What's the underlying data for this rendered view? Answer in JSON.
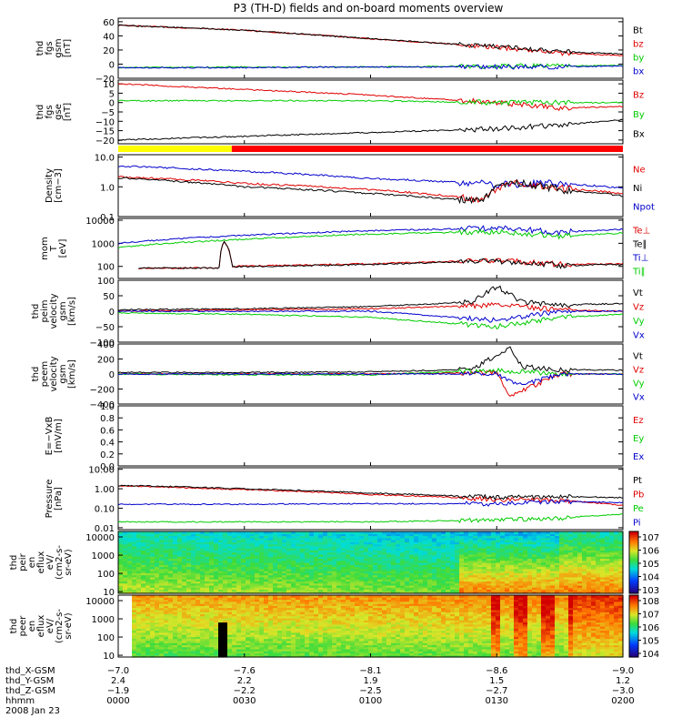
{
  "title": "P3 (TH-D) fields and on-board moments overview",
  "colors": {
    "black": "#000000",
    "red": "#e00000",
    "green": "#00cc00",
    "blue": "#0000cc",
    "yellow": "#ffff00",
    "bar_red": "#ff0000"
  },
  "chart_data": {
    "type": "line",
    "panels": [
      {
        "id": "fgs_gsm",
        "ylabel": [
          "thd",
          "fgs",
          "gsm",
          "[nT]"
        ],
        "ticks": [
          -20,
          0,
          20,
          40,
          60
        ],
        "tick_labels": [
          "−20",
          "0",
          "20",
          "40",
          "60"
        ],
        "ylim": [
          -20,
          65
        ],
        "scale": "linear",
        "legend": [
          {
            "name": "Bt",
            "color": "black"
          },
          {
            "name": "bz",
            "color": "red"
          },
          {
            "name": "by",
            "color": "green"
          },
          {
            "name": "bx",
            "color": "blue"
          }
        ],
        "series": [
          {
            "color": "red",
            "x": [
              0,
              0.5,
              0.75,
              1.0,
              1.25,
              1.5,
              1.75,
              2.0
            ],
            "y": [
              55,
              48,
              42,
              36,
              30,
              24,
              16,
              12
            ]
          },
          {
            "color": "black",
            "x": [
              0,
              0.5,
              0.75,
              1.0,
              1.25,
              1.5,
              1.75,
              2.0
            ],
            "y": [
              55,
              48,
              42,
              36,
              30,
              25,
              18,
              14
            ]
          },
          {
            "color": "green",
            "x": [
              0,
              0.5,
              1.0,
              1.5,
              2.0
            ],
            "y": [
              -5,
              -4,
              -4,
              -3,
              -2
            ]
          },
          {
            "color": "blue",
            "x": [
              0,
              0.5,
              1.0,
              1.5,
              2.0
            ],
            "y": [
              -5,
              -5,
              -4,
              -4,
              -3
            ]
          }
        ]
      },
      {
        "id": "fgs_gse",
        "ylabel": [
          "thd",
          "fgs",
          "gse",
          "[nT]"
        ],
        "ticks": [
          -20,
          -15,
          -10,
          -5,
          0,
          5,
          10
        ],
        "tick_labels": [
          "−20",
          "−15",
          "−10",
          "−5",
          "0",
          "5",
          "10"
        ],
        "ylim": [
          -22,
          12
        ],
        "scale": "linear",
        "legend": [
          {
            "name": "Bz",
            "color": "red"
          },
          {
            "name": "By",
            "color": "green"
          },
          {
            "name": "Bx",
            "color": "black"
          }
        ],
        "series": [
          {
            "color": "red",
            "x": [
              0,
              0.5,
              1.0,
              1.5,
              1.75,
              2.0
            ],
            "y": [
              10,
              7,
              4,
              0,
              -3,
              -2
            ]
          },
          {
            "color": "green",
            "x": [
              0,
              0.5,
              1.0,
              1.5,
              2.0
            ],
            "y": [
              1,
              1,
              1,
              0,
              0
            ]
          },
          {
            "color": "black",
            "x": [
              0,
              0.5,
              1.0,
              1.5,
              1.75,
              2.0
            ],
            "y": [
              -20,
              -18,
              -16,
              -14,
              -12,
              -9
            ]
          }
        ]
      },
      {
        "id": "density",
        "ylabel": [
          "Density",
          "[cm−3]"
        ],
        "ticks": [
          0.1,
          1.0,
          10.0
        ],
        "tick_labels": [
          "0.1",
          "1.0",
          "10.0"
        ],
        "ylim": [
          0.1,
          12
        ],
        "scale": "log",
        "legend": [
          {
            "name": "Ne",
            "color": "red"
          },
          {
            "name": "Ni",
            "color": "black"
          },
          {
            "name": "Npot",
            "color": "blue"
          }
        ],
        "series": [
          {
            "color": "blue",
            "x": [
              0,
              0.5,
              1.0,
              1.5,
              1.75,
              2.0
            ],
            "y": [
              5,
              3.3,
              1.9,
              1.2,
              1.3,
              0.9
            ]
          },
          {
            "color": "red",
            "x": [
              0,
              0.5,
              1.0,
              1.3,
              1.45,
              1.55,
              1.75,
              2.0
            ],
            "y": [
              2.2,
              1.3,
              0.8,
              0.5,
              0.35,
              1.4,
              0.9,
              0.6
            ]
          },
          {
            "color": "black",
            "x": [
              0,
              0.5,
              1.0,
              1.3,
              1.45,
              1.55,
              1.75,
              2.0
            ],
            "y": [
              2.0,
              1.0,
              0.6,
              0.4,
              0.35,
              1.5,
              0.8,
              0.5
            ]
          }
        ]
      },
      {
        "id": "temperature",
        "ylabel": [
          "mom",
          "T",
          "[eV]"
        ],
        "ticks": [
          100,
          1000,
          10000
        ],
        "tick_labels": [
          "100",
          "1000",
          "10000"
        ],
        "ylim": [
          30,
          12000
        ],
        "scale": "log",
        "legend": [
          {
            "name": "Te⊥",
            "color": "red"
          },
          {
            "name": "Te∥",
            "color": "black"
          },
          {
            "name": "Ti⊥",
            "color": "blue"
          },
          {
            "name": "Ti∥",
            "color": "green"
          }
        ],
        "series": [
          {
            "color": "blue",
            "x": [
              0,
              0.5,
              1.0,
              1.5,
              1.75,
              2.0
            ],
            "y": [
              1000,
              2200,
              3500,
              4500,
              3000,
              4000
            ]
          },
          {
            "color": "green",
            "x": [
              0,
              0.5,
              1.0,
              1.5,
              1.75,
              2.0
            ],
            "y": [
              650,
              1500,
              2500,
              3200,
              2000,
              2800
            ]
          },
          {
            "color": "red",
            "x": [
              0.08,
              0.4,
              0.42,
              0.45,
              1.0,
              1.5,
              1.75,
              2.0
            ],
            "y": [
              85,
              85,
              1200,
              100,
              130,
              180,
              120,
              130
            ]
          },
          {
            "color": "black",
            "x": [
              0.08,
              0.4,
              0.42,
              0.45,
              1.0,
              1.5,
              1.75,
              2.0
            ],
            "y": [
              85,
              85,
              1200,
              95,
              120,
              170,
              110,
              120
            ]
          }
        ]
      },
      {
        "id": "velocity_gsm",
        "ylabel": [
          "thd",
          "peim",
          "velocity",
          "gsm",
          "[km/s]"
        ],
        "ticks": [
          -100,
          -50,
          0,
          50,
          100
        ],
        "tick_labels": [
          "−100",
          "−50",
          "0",
          "50",
          "100"
        ],
        "ylim": [
          -100,
          100
        ],
        "scale": "linear",
        "legend": [
          {
            "name": "Vt",
            "color": "black"
          },
          {
            "name": "Vz",
            "color": "red"
          },
          {
            "name": "Vy",
            "color": "green"
          },
          {
            "name": "Vx",
            "color": "blue"
          }
        ],
        "series": [
          {
            "color": "black",
            "x": [
              0,
              0.5,
              1.0,
              1.4,
              1.5,
              1.6,
              1.75,
              2.0
            ],
            "y": [
              5,
              8,
              15,
              30,
              80,
              30,
              20,
              25
            ]
          },
          {
            "color": "red",
            "x": [
              0,
              0.5,
              1.0,
              1.5,
              1.75,
              2.0
            ],
            "y": [
              0,
              5,
              8,
              20,
              5,
              0
            ]
          },
          {
            "color": "green",
            "x": [
              0,
              0.5,
              1.0,
              1.5,
              1.75,
              2.0
            ],
            "y": [
              -5,
              -10,
              -20,
              -50,
              -20,
              -10
            ]
          },
          {
            "color": "blue",
            "x": [
              0,
              0.5,
              1.0,
              1.5,
              1.75,
              2.0
            ],
            "y": [
              0,
              0,
              0,
              -30,
              0,
              0
            ]
          }
        ]
      },
      {
        "id": "velocity_gsm_b",
        "ylabel": [
          "thd",
          "peem",
          "velocity",
          "gsm",
          "[km/s]"
        ],
        "ticks": [
          -400,
          -200,
          0,
          200,
          400
        ],
        "tick_labels": [
          "−400",
          "−200",
          "0",
          "200",
          "400"
        ],
        "ylim": [
          -400,
          400
        ],
        "scale": "linear",
        "legend": [
          {
            "name": "Vt",
            "color": "black"
          },
          {
            "name": "Vz",
            "color": "red"
          },
          {
            "name": "Vy",
            "color": "green"
          },
          {
            "name": "Vx",
            "color": "blue"
          }
        ],
        "series": [
          {
            "color": "black",
            "x": [
              0,
              0.5,
              1.0,
              1.4,
              1.55,
              1.6,
              1.75,
              2.0
            ],
            "y": [
              20,
              20,
              30,
              60,
              350,
              100,
              60,
              50
            ]
          },
          {
            "color": "red",
            "x": [
              0,
              0.5,
              1.0,
              1.5,
              1.55,
              1.75,
              2.0
            ],
            "y": [
              0,
              0,
              0,
              20,
              -300,
              0,
              0
            ]
          },
          {
            "color": "green",
            "x": [
              0,
              0.5,
              1.0,
              1.5,
              1.75,
              2.0
            ],
            "y": [
              0,
              -10,
              -10,
              50,
              0,
              0
            ]
          },
          {
            "color": "blue",
            "x": [
              0,
              0.5,
              1.0,
              1.5,
              1.6,
              1.75,
              2.0
            ],
            "y": [
              0,
              0,
              0,
              0,
              -150,
              0,
              0
            ]
          }
        ]
      },
      {
        "id": "efield",
        "ylabel": [
          "E=−VxB",
          "[mV/m]"
        ],
        "ticks": [
          0.0,
          0.2,
          0.4,
          0.6,
          0.8,
          1.0
        ],
        "tick_labels": [
          "0.0",
          "0.2",
          "0.4",
          "0.6",
          "0.8",
          "1.0"
        ],
        "ylim": [
          0,
          1
        ],
        "scale": "linear",
        "legend": [
          {
            "name": "Ez",
            "color": "red"
          },
          {
            "name": "Ey",
            "color": "green"
          },
          {
            "name": "Ex",
            "color": "blue"
          }
        ],
        "series": []
      },
      {
        "id": "pressure",
        "ylabel": [
          "Pressure",
          "[nPa]"
        ],
        "ticks": [
          0.01,
          0.1,
          1.0,
          10.0
        ],
        "tick_labels": [
          "0.01",
          "0.10",
          "1.00",
          "10.00"
        ],
        "ylim": [
          0.008,
          12
        ],
        "scale": "log",
        "legend": [
          {
            "name": "Pt",
            "color": "black"
          },
          {
            "name": "Pb",
            "color": "red"
          },
          {
            "name": "Pe",
            "color": "green"
          },
          {
            "name": "Pi",
            "color": "blue"
          }
        ],
        "series": [
          {
            "color": "red",
            "x": [
              0,
              0.5,
              1.0,
              1.5,
              1.75,
              2.0
            ],
            "y": [
              1.4,
              0.9,
              0.5,
              0.28,
              0.25,
              0.14
            ]
          },
          {
            "color": "black",
            "x": [
              0,
              0.5,
              1.0,
              1.5,
              1.75,
              2.0
            ],
            "y": [
              1.5,
              1.0,
              0.6,
              0.35,
              0.4,
              0.35
            ]
          },
          {
            "color": "blue",
            "x": [
              0,
              0.5,
              1.0,
              1.5,
              1.75,
              2.0
            ],
            "y": [
              0.16,
              0.16,
              0.17,
              0.17,
              0.22,
              0.2
            ]
          },
          {
            "color": "green",
            "x": [
              0,
              0.5,
              1.0,
              1.5,
              1.75,
              2.0
            ],
            "y": [
              0.02,
              0.02,
              0.02,
              0.025,
              0.03,
              0.05
            ]
          }
        ]
      }
    ],
    "spectrograms": [
      {
        "id": "ion_eflux",
        "ylabel": [
          "thd",
          "peir",
          "en",
          "eflux",
          "eV/",
          "(cm2-s-",
          "sr-eV)"
        ],
        "ticks": [
          10,
          100,
          1000,
          10000
        ],
        "tick_labels": [
          "10",
          "100",
          "1000",
          "10000"
        ],
        "colorbar_ticks": [
          "103",
          "104",
          "105",
          "106",
          "107"
        ]
      },
      {
        "id": "electron_eflux",
        "ylabel": [
          "thd",
          "peer",
          "en",
          "eflux",
          "eV/",
          "(cm2-s-",
          "sr-eV)"
        ],
        "ticks": [
          10,
          100,
          1000,
          10000
        ],
        "tick_labels": [
          "10",
          "100",
          "1000",
          "10000"
        ],
        "colorbar_ticks": [
          "104",
          "105",
          "106",
          "107",
          "108"
        ]
      }
    ],
    "x_axis": {
      "xlim": [
        0,
        2
      ],
      "tick_hours": [
        0,
        0.5,
        1.0,
        1.5,
        2.0
      ],
      "rows": [
        {
          "label": "thd_X-GSM",
          "values": [
            "−7.0",
            "−7.6",
            "−8.1",
            "−8.6",
            "−9.0"
          ]
        },
        {
          "label": "thd_Y-GSM",
          "values": [
            "2.4",
            "2.2",
            "1.9",
            "1.5",
            "1.2"
          ]
        },
        {
          "label": "thd_Z-GSM",
          "values": [
            "−1.9",
            "−2.2",
            "−2.5",
            "−2.7",
            "−3.0"
          ]
        },
        {
          "label": "hhmm",
          "values": [
            "0000",
            "0030",
            "0100",
            "0130",
            "0200"
          ]
        }
      ],
      "date": "2008 Jan 23"
    },
    "mode_bar": {
      "yellow_end_hours": 0.45
    }
  }
}
